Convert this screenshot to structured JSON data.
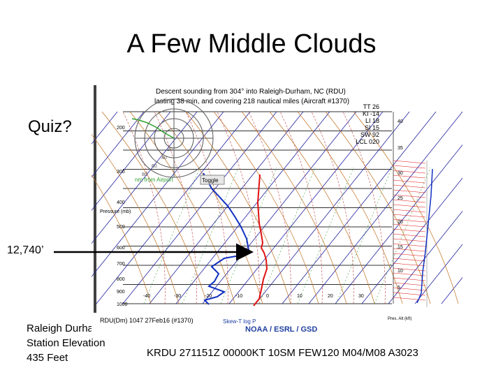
{
  "slide": {
    "title": "A Few Middle Clouds",
    "quiz_label": "Quiz?",
    "altitude_label": "12,740’",
    "station_lines": [
      "Raleigh Durham",
      "Station Elevation",
      "435 Feet"
    ],
    "metar": "KRDU 271151Z 00000KT 10SM FEW120 M04/M08 A3023"
  },
  "sounding": {
    "header_line1": "Descent sounding from 304° into Raleigh-Durham, NC (RDU)",
    "header_line2": "lasting 38 min, and covering 218 nautical miles (Aircraft #1370)",
    "indices": [
      "TT 26",
      "KI -14",
      "LI 18",
      "SI 15",
      "SW 92",
      "LCL 020"
    ],
    "pressure_axis_label": "Pressure (mb)",
    "pressure_ticks": [
      "200",
      "300",
      "400",
      "500",
      "600",
      "700",
      "800",
      "900",
      "1000"
    ],
    "temperature_ticks": [
      "-40",
      "-30",
      "-20",
      "-10",
      "0",
      "10",
      "20",
      "30"
    ],
    "range_rings": [
      "20",
      "40",
      "60",
      "80"
    ],
    "inset_caption": "nm from Airport",
    "toggle_label": "Toggle",
    "bottom_left": "RDU(Dm) 1047 27Feb16 (#1370)",
    "credit": "NOAA / ESRL / GSD",
    "skewt_label": "Skew-T log P",
    "right_axis_ticks": [
      "40",
      "35",
      "30",
      "25",
      "20",
      "15",
      "10",
      "5"
    ],
    "right_axis_label": "Pres. Alt (kft)",
    "colors": {
      "temperature": "#e01010",
      "dewpoint": "#1030c0",
      "right_profile": "#1030c0",
      "isotherm": "#2020a0",
      "dry_adiabat": "#c07020",
      "moist_adiabat": "#c04040",
      "mixing_ratio": "#40a040",
      "credit": "#2040a0"
    }
  }
}
